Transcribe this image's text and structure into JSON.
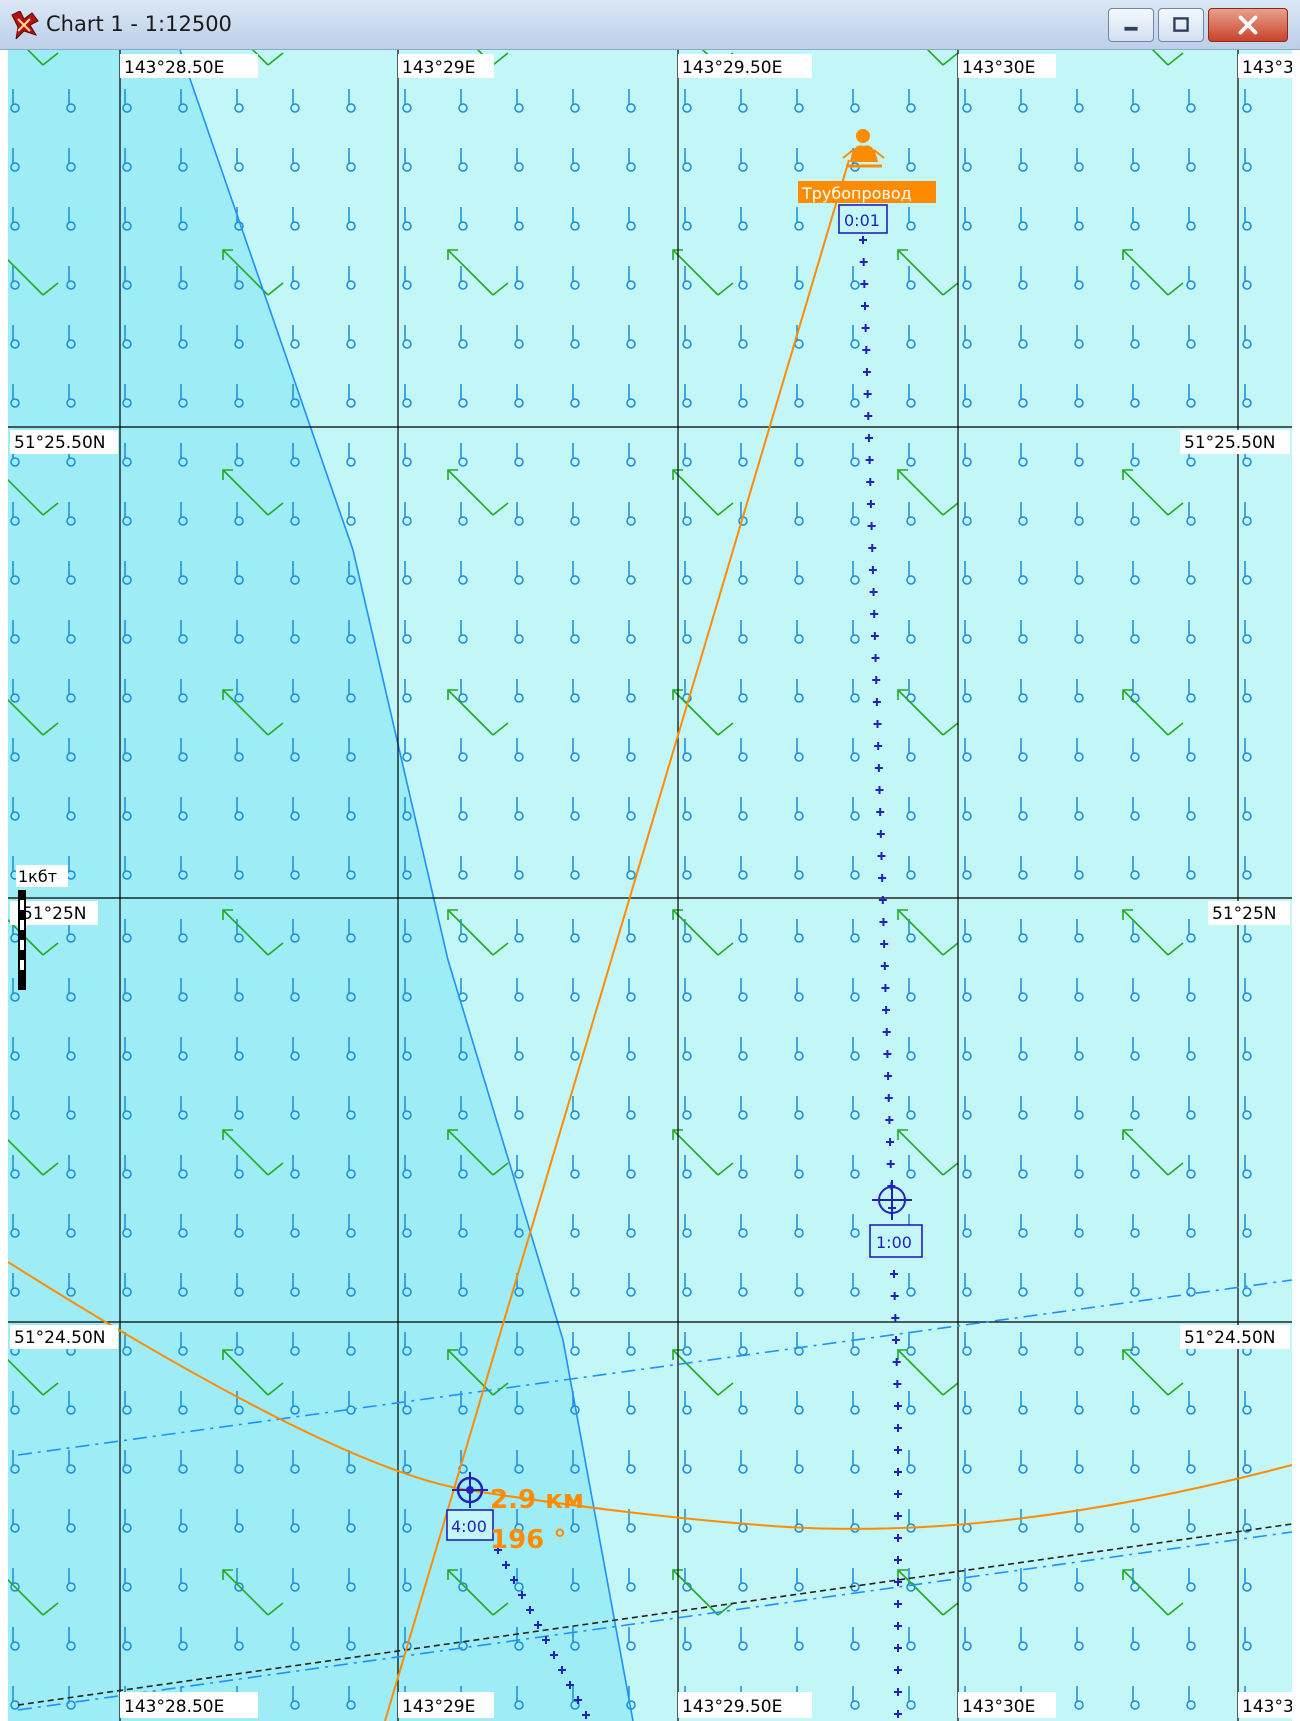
{
  "window": {
    "title": "Chart 1 - 1:12500",
    "buttons": [
      "minimize",
      "maximize",
      "close"
    ],
    "icons": {
      "app": "chart-app-icon",
      "minimize": "minimize-icon",
      "maximize": "maximize-icon",
      "close": "close-icon"
    }
  },
  "chart": {
    "longitude_labels": [
      "143°28.50E",
      "143°29E",
      "143°29.50E",
      "143°30E",
      "143°3"
    ],
    "latitude_labels": [
      "51°25.50N",
      "51°25N",
      "51°24.50N"
    ],
    "scale_label": "1кбт",
    "object_label": "Трубопровод",
    "time_labels": [
      "0:01",
      "1:00",
      "4:00"
    ],
    "distance": "2.9 км",
    "bearing": "196 °",
    "colors": {
      "water_shallow": "#9eecf5",
      "water_deep": "#c2f6f7",
      "grid": "#000000",
      "current_arrows": "#22aa22",
      "tide_markers": "#1a8cd8",
      "track": "#2222bb",
      "bearing_line": "#ff8c00",
      "depth_contour": "#1e90ff"
    }
  }
}
